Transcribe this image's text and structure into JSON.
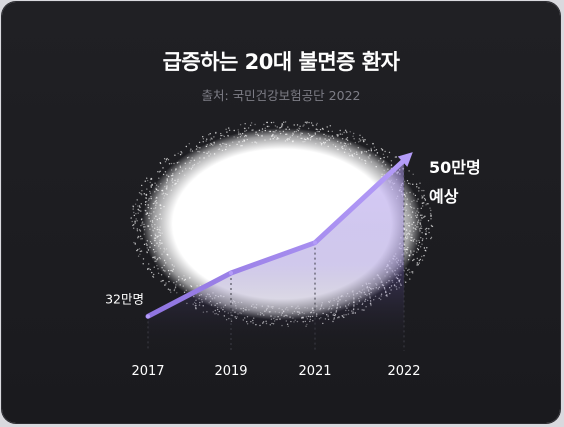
{
  "card": {
    "title": "급증하는 20대 불면증 환자",
    "source": "출처: 국민건강보험공단 2022"
  },
  "colors": {
    "background": "#1c1c20",
    "line": "#a58cf0",
    "glow": "#ffffff",
    "text": "#ffffff",
    "muted": "#7d7d86"
  },
  "chart_data": {
    "type": "line",
    "title": "급증하는 20대 불면증 환자",
    "subtitle": "출처: 국민건강보험공단 2022",
    "categories": [
      "2017",
      "2019",
      "2021",
      "2022"
    ],
    "unit": "만명",
    "start_label": "32만명",
    "end_label_line1": "50만명",
    "end_label_line2": "예상",
    "values": [
      32,
      37,
      40.5,
      50
    ],
    "ylim": [
      28,
      52
    ],
    "grid": "vertical-dotted",
    "legend": "none"
  }
}
